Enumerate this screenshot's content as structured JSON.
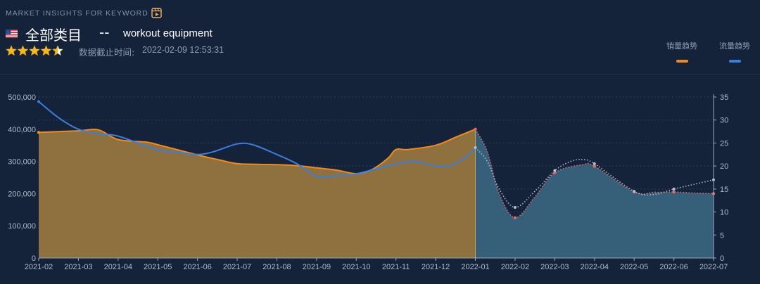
{
  "header": {
    "kicker": "MARKET INSIGHTS FOR KEYWORD",
    "category": "全部类目",
    "separator": "--",
    "keyword": "workout equipment",
    "timestamp_label": "数据截止时间:",
    "timestamp": "2022-02-09 12:53:31",
    "rating": 4.5,
    "rating_max": 5
  },
  "legend": [
    {
      "label": "销量趋势",
      "color": "#f08a18"
    },
    {
      "label": "流量趋势",
      "color": "#3a7fdc"
    }
  ],
  "colors": {
    "background": "#14233a",
    "sales_fill": "#8f703f",
    "forecast_fill": "#366079",
    "traffic_line": "#3a7fdc",
    "sales_line": "#f08a18",
    "forecast_sales_line": "#e16a6a",
    "forecast_traffic_line": "#a7b3c8"
  },
  "chart_data": {
    "type": "area",
    "title": "",
    "x": [
      "2021-02",
      "2021-03",
      "2021-04",
      "2021-05",
      "2021-06",
      "2021-07",
      "2021-08",
      "2021-09",
      "2021-10",
      "2021-11",
      "2021-12",
      "2022-01",
      "2022-02",
      "2022-03",
      "2022-04",
      "2022-05",
      "2022-06",
      "2022-07"
    ],
    "forecast_start_index": 11,
    "y_left": {
      "min": 0,
      "max": 500000,
      "ticks": [
        "0",
        "100,000",
        "200,000",
        "300,000",
        "400,000",
        "500,000"
      ]
    },
    "y_right": {
      "min": 0,
      "max": 35,
      "ticks": [
        "0",
        "5",
        "10",
        "15",
        "20",
        "25",
        "30",
        "35"
      ]
    },
    "series": [
      {
        "name": "销量趋势",
        "axis": "left",
        "values": [
          390000,
          395000,
          368000,
          352000,
          320000,
          293000,
          290000,
          280000,
          262000,
          337000,
          350000,
          400000,
          125000,
          265000,
          285000,
          205000,
          205000,
          200000
        ],
        "extra_points": [
          [
            1.5,
            398000
          ],
          [
            2.7,
            360000
          ],
          [
            4.5,
            306000
          ],
          [
            5.5,
            291000
          ],
          [
            6.5,
            287000
          ],
          [
            7.5,
            273000
          ],
          [
            8.4,
            275000
          ],
          [
            8.8,
            310000
          ],
          [
            9.3,
            337000
          ],
          [
            10.5,
            375000
          ],
          [
            11.3,
            330000
          ],
          [
            11.6,
            200000
          ],
          [
            12.5,
            190000
          ],
          [
            13.7,
            290000
          ],
          [
            15.5,
            204000
          ],
          [
            16.5,
            202000
          ]
        ]
      },
      {
        "name": "流量趋势",
        "axis": "right",
        "values": [
          34,
          28,
          26.5,
          23.5,
          22.5,
          24.8,
          22.5,
          17.8,
          18.3,
          20.5,
          20,
          24,
          11,
          19,
          20.5,
          14.5,
          15,
          17
        ],
        "extra_points": [
          [
            0.5,
            30.5
          ],
          [
            1.5,
            27
          ],
          [
            3.5,
            23
          ],
          [
            4.4,
            23.1
          ],
          [
            5.4,
            24.6
          ],
          [
            6.5,
            20.5
          ],
          [
            7.5,
            17.9
          ],
          [
            9.5,
            21
          ],
          [
            10.4,
            20.2
          ],
          [
            10.8,
            22.2
          ],
          [
            11.3,
            21
          ],
          [
            11.6,
            15
          ],
          [
            12.5,
            14.5
          ],
          [
            13.4,
            21
          ],
          [
            13.7,
            21.4
          ],
          [
            15.5,
            13.8
          ],
          [
            16.5,
            16
          ]
        ]
      }
    ]
  }
}
